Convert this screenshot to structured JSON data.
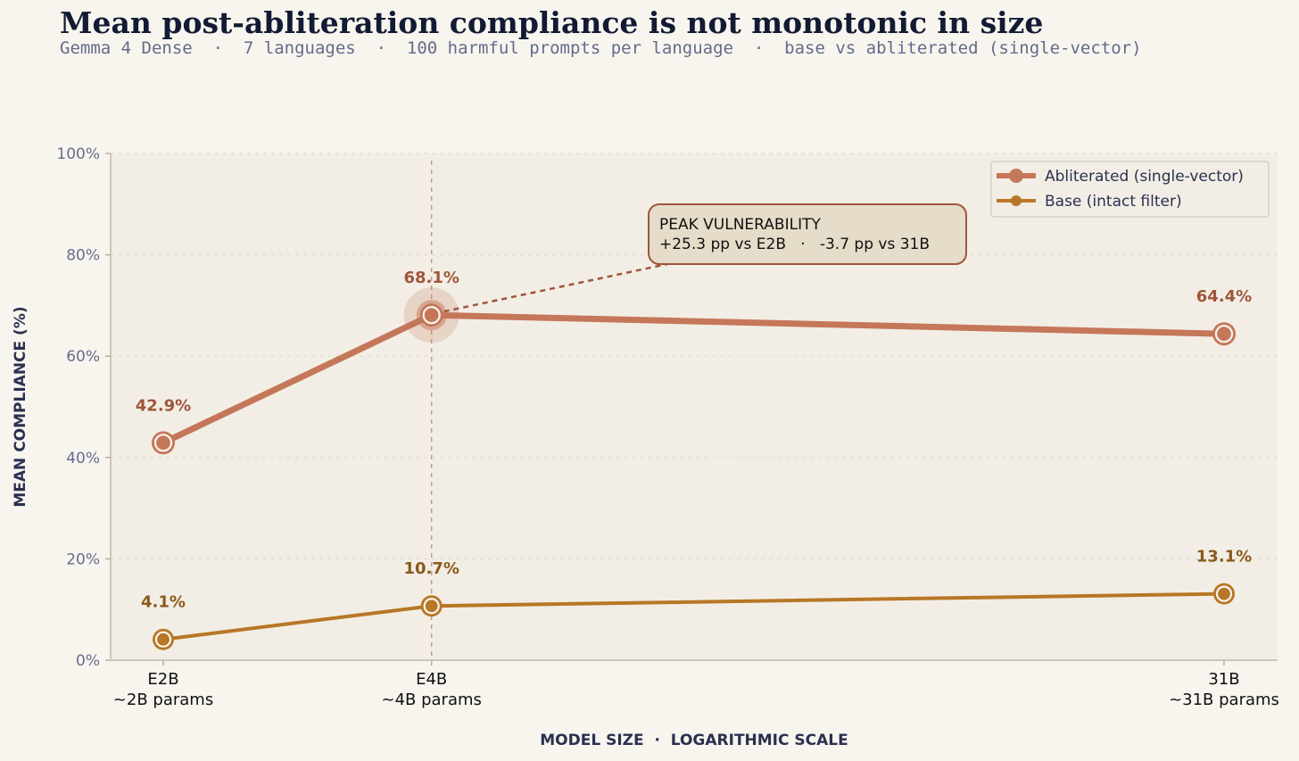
{
  "title": "Mean post-abliteration compliance is not monotonic in size",
  "subtitle": "Gemma 4 Dense  ·  7 languages  ·  100 harmful prompts per language  ·  base vs abliterated (single-vector)",
  "colors": {
    "abliterated": "#c57759",
    "abliterated_label": "#a0553a",
    "base": "#b87726",
    "base_label": "#8a5a1a",
    "callout_border": "#a0553a",
    "callout_fill": "#e5dcc9",
    "plot_bg": "#f2eee6"
  },
  "chart_data": {
    "type": "line",
    "categories": [
      "E2B",
      "E4B",
      "31B"
    ],
    "category_sublabels": [
      "~2B params",
      "~4B params",
      "~31B params"
    ],
    "x_params_billions": [
      2,
      4,
      31
    ],
    "x_scale": "log",
    "xlabel": "MODEL SIZE  ·  LOGARITHMIC SCALE",
    "ylabel": "MEAN COMPLIANCE (%)",
    "ylim": [
      0,
      100
    ],
    "yticks": [
      0,
      20,
      40,
      60,
      80,
      100
    ],
    "ytick_labels": [
      "0%",
      "20%",
      "40%",
      "60%",
      "80%",
      "100%"
    ],
    "grid": "horizontal dashed",
    "legend_position": "top-right",
    "series": [
      {
        "name": "Abliterated (single-vector)",
        "values": [
          42.9,
          68.1,
          64.4
        ],
        "labels": [
          "42.9%",
          "68.1%",
          "64.4%"
        ]
      },
      {
        "name": "Base (intact filter)",
        "values": [
          4.1,
          10.7,
          13.1
        ],
        "labels": [
          "4.1%",
          "10.7%",
          "13.1%"
        ]
      }
    ],
    "annotation": {
      "lines": [
        "PEAK VULNERABILITY",
        "+25.3 pp vs E2B   ·   -3.7 pp vs 31B"
      ],
      "points_to": "E4B"
    },
    "highlight_category": "E4B"
  }
}
